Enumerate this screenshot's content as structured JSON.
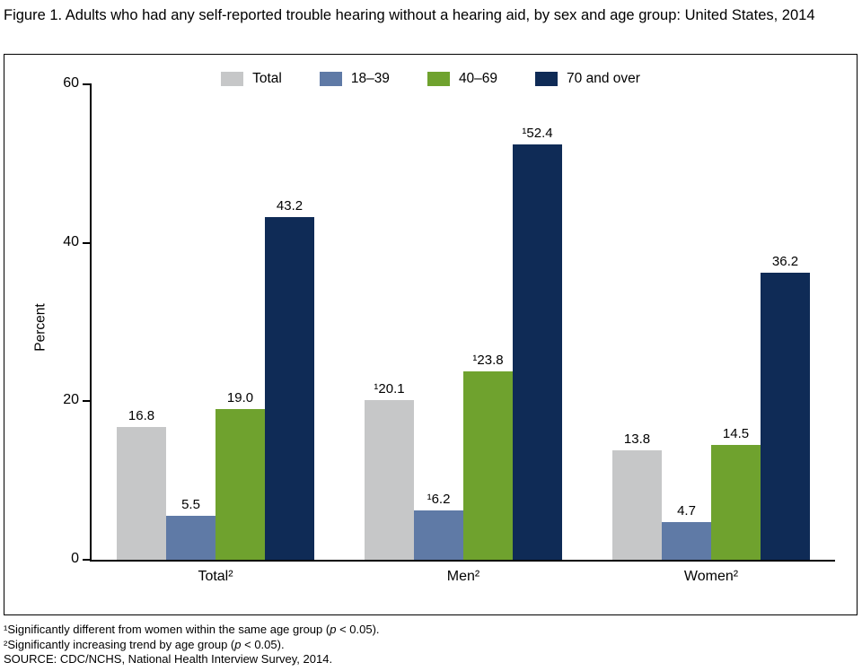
{
  "title": "Figure 1. Adults who had any self-reported trouble hearing without a hearing aid, by sex and age group: United States, 2014",
  "chart_data": {
    "type": "bar",
    "title": "Figure 1. Adults who had any self-reported trouble hearing without a hearing aid, by sex and age group: United States, 2014",
    "xlabel": "",
    "ylabel": "Percent",
    "ylim": [
      0,
      60
    ],
    "yticks": [
      0,
      20,
      40,
      60
    ],
    "grid": false,
    "legend_position": "top",
    "categories": [
      "Total²",
      "Men²",
      "Women²"
    ],
    "series": [
      {
        "name": "Total",
        "color": "#c6c7c8",
        "values": [
          16.8,
          20.1,
          13.8
        ],
        "labels": [
          "16.8",
          "¹20.1",
          "13.8"
        ]
      },
      {
        "name": "18–39",
        "color": "#5f7aa6",
        "values": [
          5.5,
          6.2,
          4.7
        ],
        "labels": [
          "5.5",
          "¹6.2",
          "4.7"
        ]
      },
      {
        "name": "40–69",
        "color": "#6fa22e",
        "values": [
          19.0,
          23.8,
          14.5
        ],
        "labels": [
          "19.0",
          "¹23.8",
          "14.5"
        ]
      },
      {
        "name": "70 and over",
        "color": "#0f2b56",
        "values": [
          43.2,
          52.4,
          36.2
        ],
        "labels": [
          "43.2",
          "¹52.4",
          "36.2"
        ]
      }
    ]
  },
  "footnotes": {
    "f1": {
      "pre": "¹Significantly different from women within the same age group (",
      "p": "p",
      "post": " < 0.05)."
    },
    "f2": {
      "pre": "²Significantly increasing trend by age group (",
      "p": "p",
      "post": " < 0.05)."
    },
    "source": "SOURCE: CDC/NCHS, National Health Interview Survey, 2014."
  }
}
